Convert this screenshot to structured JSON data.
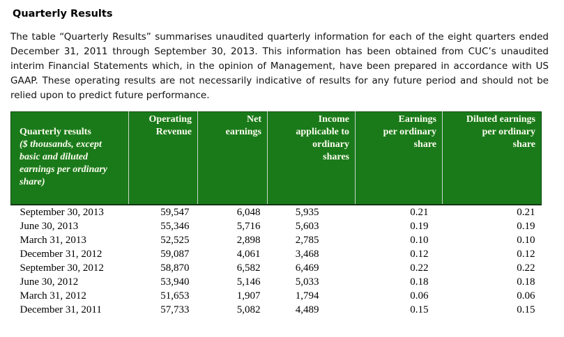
{
  "page": {
    "heading": "Quarterly Results",
    "paragraph": "The table “Quarterly Results” summarises unaudited quarterly information for each of the eight quarters ended December 31, 2011 through September 30, 2013. This information has been obtained from CUC’s unaudited interim Financial Statements which, in the opinion of Management, have been prepared in accordance with US GAAP. These operating results are not necessarily indicative of results for any future period and should not be relied upon to predict future performance."
  },
  "table": {
    "colors": {
      "header_bg": "#1a7a1a",
      "header_text": "#fdfdf0",
      "body_text": "#000000"
    },
    "header": {
      "col1_title": "Quarterly results",
      "col1_subtitle": "($ thousands, except\nbasic and diluted\nearnings per ordinary\nshare)",
      "columns": [
        "Operating\nRevenue",
        "Net\nearnings",
        "Income\napplicable to\nordinary\nshares",
        "Earnings\nper ordinary\nshare",
        "Diluted earnings\nper ordinary\nshare"
      ]
    },
    "rows": [
      [
        "September 30, 2013",
        "59,547",
        "6,048",
        "5,935",
        "0.21",
        "0.21"
      ],
      [
        "June 30, 2013",
        "55,346",
        "5,716",
        "5,603",
        "0.19",
        "0.19"
      ],
      [
        "March 31, 2013",
        "52,525",
        "2,898",
        "2,785",
        "0.10",
        "0.10"
      ],
      [
        "December 31, 2012",
        "59,087",
        "4,061",
        "3,468",
        "0.12",
        "0.12"
      ],
      [
        "September 30, 2012",
        "58,870",
        "6,582",
        "6,469",
        "0.22",
        "0.22"
      ],
      [
        "June 30, 2012",
        "53,940",
        "5,146",
        "5,033",
        "0.18",
        "0.18"
      ],
      [
        "March 31, 2012",
        "51,653",
        "1,907",
        "1,794",
        "0.06",
        "0.06"
      ],
      [
        "December 31, 2011",
        "57,733",
        "5,082",
        "4,489",
        "0.15",
        "0.15"
      ]
    ]
  }
}
